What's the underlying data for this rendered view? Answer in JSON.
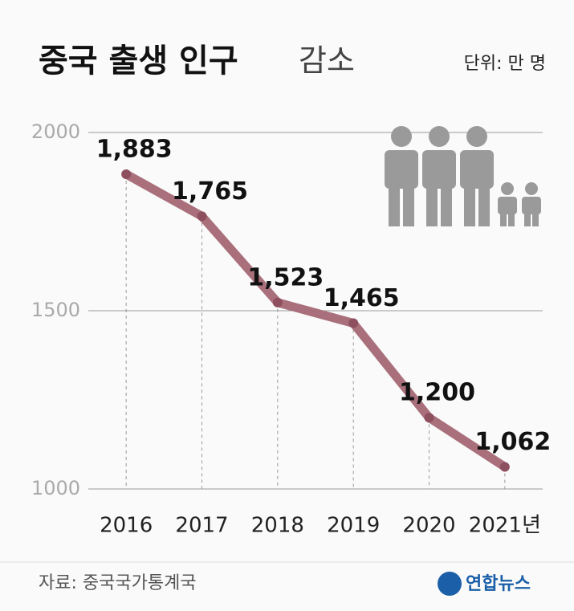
{
  "chart_data": {
    "type": "line",
    "title": "중국 출생 인구",
    "title_tail": "감소",
    "unit": "단위: 만 명",
    "categories": [
      "2016",
      "2017",
      "2018",
      "2019",
      "2020",
      "2021년"
    ],
    "values": [
      1883,
      1765,
      1523,
      1465,
      1200,
      1062
    ],
    "value_labels": [
      "1,883",
      "1,765",
      "1,523",
      "1,465",
      "1,200",
      "1,062"
    ],
    "color": "#a9707c",
    "marker_color": "#8e4f5e",
    "ylim": [
      1000,
      2000
    ],
    "yticks": [
      1000,
      1500,
      2000
    ],
    "grid": true,
    "source": "자료: 중국국가통계국",
    "logo": "연합뉴스"
  }
}
